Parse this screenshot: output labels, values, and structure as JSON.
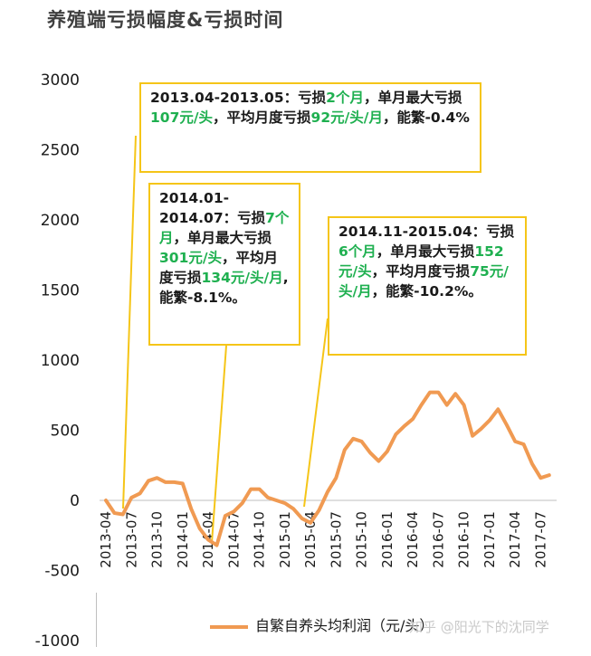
{
  "title": "养殖端亏损幅度&亏损时间",
  "chart_data": {
    "type": "line",
    "ylim": [
      -1000,
      3000
    ],
    "yticks": [
      3000,
      2500,
      2000,
      1500,
      1000,
      500,
      0,
      -500,
      -1000
    ],
    "xtick_labels": [
      "2013-04",
      "2013-07",
      "2013-10",
      "2014-01",
      "2014-04",
      "2014-07",
      "2014-10",
      "2015-01",
      "2015-04",
      "2015-07",
      "2015-10",
      "2016-01",
      "2016-04",
      "2016-07",
      "2016-10",
      "2017-01",
      "2017-04",
      "2017-07"
    ],
    "series": [
      {
        "name": "自繁自养头均利润（元/头）",
        "color": "#f09a52",
        "x": [
          "2013-04",
          "2013-05",
          "2013-06",
          "2013-07",
          "2013-08",
          "2013-09",
          "2013-10",
          "2013-11",
          "2013-12",
          "2014-01",
          "2014-02",
          "2014-03",
          "2014-04",
          "2014-05",
          "2014-06",
          "2014-07",
          "2014-08",
          "2014-09",
          "2014-10",
          "2014-11",
          "2014-12",
          "2015-01",
          "2015-02",
          "2015-03",
          "2015-04",
          "2015-05",
          "2015-06",
          "2015-07",
          "2015-08",
          "2015-09",
          "2015-10",
          "2015-11",
          "2015-12",
          "2016-01",
          "2016-02",
          "2016-03",
          "2016-04",
          "2016-05",
          "2016-06",
          "2016-07",
          "2016-08",
          "2016-09",
          "2016-10",
          "2016-11",
          "2016-12",
          "2017-01",
          "2017-02",
          "2017-03",
          "2017-04",
          "2017-05",
          "2017-06",
          "2017-07",
          "2017-08"
        ],
        "values": [
          0,
          -90,
          -100,
          20,
          50,
          140,
          160,
          130,
          130,
          120,
          -60,
          -200,
          -280,
          -320,
          -110,
          -80,
          -20,
          80,
          80,
          20,
          0,
          -20,
          -60,
          -130,
          -160,
          -70,
          60,
          160,
          360,
          440,
          420,
          340,
          280,
          350,
          470,
          530,
          580,
          680,
          770,
          770,
          680,
          760,
          680,
          460,
          510,
          570,
          650,
          540,
          420,
          400,
          260,
          160,
          180
        ]
      }
    ],
    "annotations": [
      {
        "id": "ann1",
        "period": "2013.04-2013.05：",
        "parts": [
          {
            "t": "亏损",
            "g": false
          },
          {
            "t": "2个月",
            "g": true
          },
          {
            "t": "，单月最大亏损",
            "g": false
          },
          {
            "t": "107元/头",
            "g": true
          },
          {
            "t": "，平均月度亏损",
            "g": false
          },
          {
            "t": "92元/头/月",
            "g": true
          },
          {
            "t": "，能繁-0.4%",
            "g": false
          }
        ]
      },
      {
        "id": "ann2",
        "period": "2014.01-2014.07：",
        "parts": [
          {
            "t": "亏损",
            "g": false
          },
          {
            "t": "7个月",
            "g": true
          },
          {
            "t": "，单月最大亏损",
            "g": false
          },
          {
            "t": "301元/头",
            "g": true
          },
          {
            "t": "，平均月度亏损",
            "g": false
          },
          {
            "t": "134元/头/月",
            "g": true
          },
          {
            "t": ",能繁-8.1%。",
            "g": false
          }
        ]
      },
      {
        "id": "ann3",
        "period": "2014.11-2015.04：",
        "parts": [
          {
            "t": "亏损",
            "g": false
          },
          {
            "t": "6个月",
            "g": true
          },
          {
            "t": "，单月最大亏损",
            "g": false
          },
          {
            "t": "152元/头",
            "g": true
          },
          {
            "t": "，平均月度亏损",
            "g": false
          },
          {
            "t": "75元/头/月",
            "g": true
          },
          {
            "t": "，能繁-10.2%。",
            "g": false
          }
        ]
      }
    ],
    "legend_label": "自繁自养头均利润（元/头）"
  },
  "watermark": "知乎 @阳光下的沈同学"
}
